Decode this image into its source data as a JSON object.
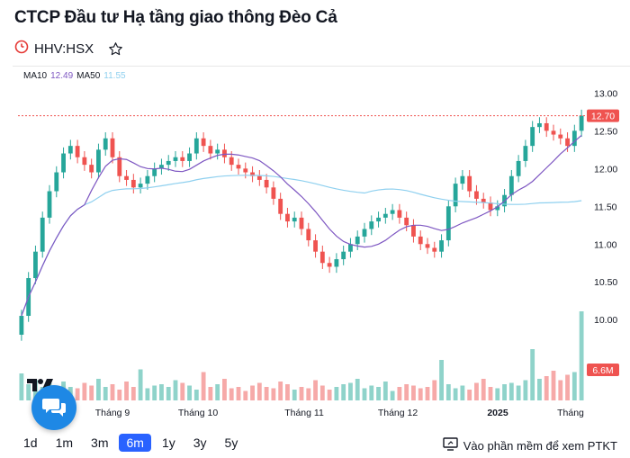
{
  "header": {
    "title": "CTCP Đầu tư Hạ tầng giao thông Đèo Cả",
    "ticker": "HHV:HSX"
  },
  "legend": {
    "ma10_label": "MA10",
    "ma10_value": "12.49",
    "ma50_label": "MA50",
    "ma50_value": "11.55"
  },
  "ranges": [
    {
      "label": "1d",
      "active": false
    },
    {
      "label": "1m",
      "active": false
    },
    {
      "label": "3m",
      "active": false
    },
    {
      "label": "6m",
      "active": true
    },
    {
      "label": "1y",
      "active": false
    },
    {
      "label": "3y",
      "active": false
    },
    {
      "label": "5y",
      "active": false
    }
  ],
  "ptkt_label": "Vào phần mềm để xem PTKT",
  "colors": {
    "up": "#26a69a",
    "down": "#ef5350",
    "ma10": "#7e57c2",
    "ma50": "#8fd0ef",
    "accent": "#2962ff"
  },
  "icons": [
    "timer-icon",
    "star-icon",
    "tradingview-logo-icon",
    "chat-icon",
    "monitor-icon"
  ],
  "chart_data": {
    "type": "candlestick",
    "y_ticks": [
      "13.00",
      "12.50",
      "12.00",
      "11.50",
      "11.00",
      "10.50",
      "10.00"
    ],
    "ylim": [
      9.8,
      13.1
    ],
    "x_ticks": [
      "Tháng 9",
      "Tháng 10",
      "Tháng 11",
      "Tháng 12",
      "2025",
      "Tháng"
    ],
    "last_price": 12.7,
    "last_price_label": "12.70",
    "last_volume_label": "6.6M",
    "closes": [
      10.05,
      10.55,
      10.9,
      11.35,
      11.7,
      11.95,
      12.2,
      12.3,
      12.15,
      12.05,
      11.95,
      12.25,
      12.4,
      12.15,
      11.9,
      11.85,
      11.75,
      11.8,
      11.9,
      12.0,
      12.05,
      12.1,
      12.15,
      12.1,
      12.2,
      12.4,
      12.3,
      12.2,
      12.25,
      12.15,
      12.05,
      12.0,
      11.95,
      11.9,
      11.85,
      11.75,
      11.6,
      11.4,
      11.3,
      11.35,
      11.2,
      11.05,
      10.9,
      10.75,
      10.7,
      10.8,
      10.9,
      11.0,
      11.1,
      11.2,
      11.3,
      11.35,
      11.4,
      11.45,
      11.35,
      11.25,
      11.1,
      11.0,
      10.95,
      10.9,
      11.05,
      11.5,
      11.8,
      11.9,
      11.7,
      11.6,
      11.55,
      11.45,
      11.5,
      11.65,
      11.9,
      12.1,
      12.3,
      12.55,
      12.6,
      12.5,
      12.45,
      12.4,
      12.3,
      12.5,
      12.7
    ],
    "volumes_m": [
      2.0,
      1.2,
      1.5,
      1.0,
      1.3,
      1.1,
      1.4,
      1.0,
      0.9,
      1.3,
      1.1,
      1.6,
      1.0,
      1.2,
      0.8,
      1.4,
      1.0,
      2.3,
      0.9,
      1.1,
      1.2,
      1.0,
      1.5,
      1.3,
      1.1,
      0.8,
      2.1,
      1.0,
      1.2,
      1.6,
      0.9,
      1.0,
      0.7,
      1.1,
      1.3,
      1.0,
      0.9,
      1.4,
      1.2,
      0.8,
      1.0,
      0.9,
      1.5,
      1.1,
      0.8,
      1.0,
      1.2,
      1.3,
      1.6,
      0.9,
      1.1,
      1.0,
      1.4,
      0.7,
      1.0,
      1.2,
      1.1,
      0.9,
      1.0,
      1.5,
      3.0,
      1.2,
      0.9,
      1.1,
      0.8,
      1.3,
      1.6,
      1.0,
      0.9,
      1.2,
      1.3,
      1.1,
      1.5,
      3.8,
      1.6,
      1.8,
      2.2,
      1.5,
      1.9,
      2.1,
      6.6
    ]
  }
}
